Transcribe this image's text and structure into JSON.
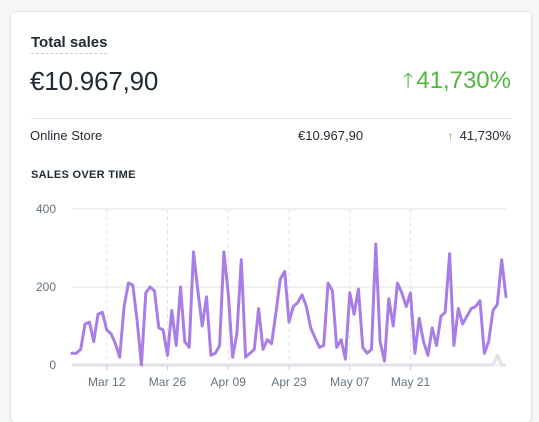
{
  "card": {
    "title": "Total sales",
    "total_amount": "€10.967,90",
    "total_change": "41,730%",
    "change_icon": "arrow-up-icon",
    "change_color": "#50b83c",
    "rows": [
      {
        "label": "Online Store",
        "value": "€10.967,90",
        "change": "41,730%"
      }
    ],
    "section_title": "SALES OVER TIME"
  },
  "chart_data": {
    "type": "line",
    "title": "SALES OVER TIME",
    "xlabel": "",
    "ylabel": "",
    "ylim": [
      0,
      400
    ],
    "y_ticks": [
      0,
      200,
      400
    ],
    "x_tick_labels": [
      "Mar 12",
      "Mar 26",
      "Apr 09",
      "Apr 23",
      "May 07",
      "May 21"
    ],
    "x_tick_index": [
      8,
      22,
      36,
      50,
      64,
      78
    ],
    "grid": true,
    "line_color": "#a87ee6",
    "secondary_color": "#dfe3e8",
    "series": [
      {
        "values": [
          30,
          30,
          40,
          105,
          110,
          60,
          130,
          135,
          90,
          80,
          55,
          20,
          150,
          210,
          205,
          115,
          0,
          185,
          200,
          190,
          95,
          90,
          25,
          140,
          50,
          200,
          60,
          45,
          290,
          190,
          100,
          175,
          25,
          30,
          50,
          290,
          185,
          20,
          80,
          270,
          20,
          30,
          40,
          145,
          40,
          65,
          55,
          135,
          220,
          240,
          110,
          150,
          160,
          180,
          150,
          95,
          70,
          45,
          50,
          210,
          190,
          45,
          65,
          15,
          185,
          130,
          195,
          45,
          30,
          40,
          310,
          60,
          10,
          170,
          100,
          210,
          185,
          150,
          185,
          30,
          120,
          60,
          25,
          95,
          50,
          125,
          135,
          285,
          50,
          145,
          105,
          125,
          145,
          150,
          165,
          30,
          60,
          140,
          155,
          270,
          175
        ]
      },
      {
        "values": [
          0,
          0,
          0,
          0,
          0,
          0,
          0,
          0,
          0,
          0,
          0,
          0,
          0,
          0,
          0,
          0,
          0,
          0,
          0,
          0,
          0,
          0,
          0,
          0,
          0,
          0,
          0,
          0,
          0,
          0,
          0,
          0,
          0,
          0,
          0,
          0,
          0,
          0,
          0,
          0,
          0,
          0,
          0,
          0,
          0,
          0,
          0,
          0,
          0,
          0,
          0,
          0,
          0,
          0,
          0,
          0,
          0,
          0,
          0,
          0,
          0,
          0,
          0,
          0,
          0,
          0,
          0,
          0,
          0,
          0,
          0,
          0,
          0,
          0,
          0,
          0,
          0,
          0,
          0,
          0,
          0,
          0,
          0,
          0,
          0,
          0,
          0,
          0,
          0,
          0,
          0,
          0,
          0,
          0,
          0,
          0,
          0,
          0,
          25,
          0,
          0
        ]
      }
    ]
  }
}
